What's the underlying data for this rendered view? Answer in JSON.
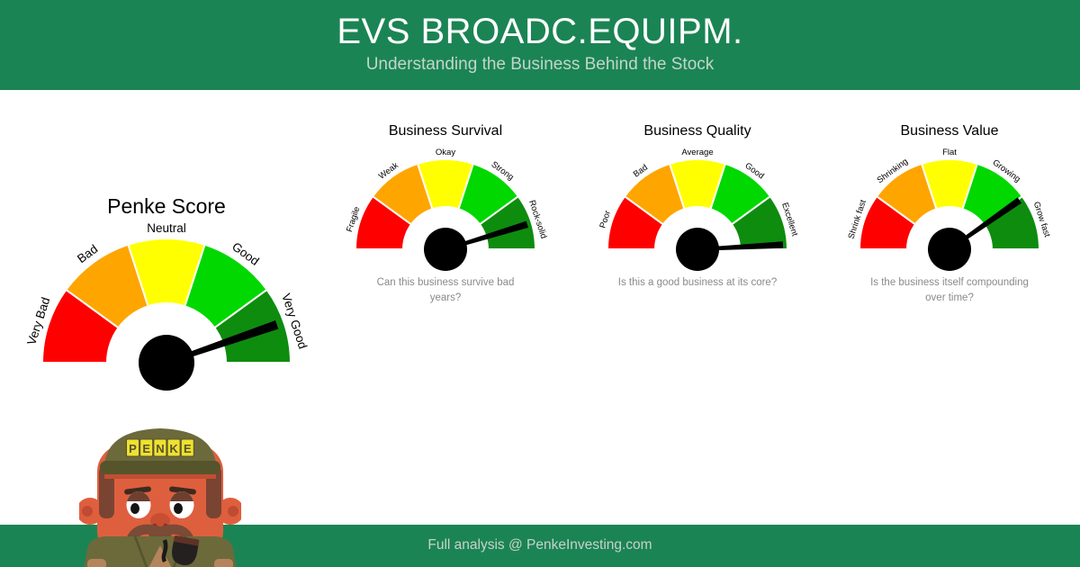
{
  "header": {
    "title": "EVS BROADC.EQUIPM.",
    "subtitle": "Understanding the Business Behind the Stock"
  },
  "footer": {
    "text": "Full analysis @ PenkeInvesting.com"
  },
  "colors": {
    "header_bg": "#1B8454",
    "footer_bg": "#1B8454",
    "segments": [
      "#FF0000",
      "#FFA500",
      "#FFFF00",
      "#00D800",
      "#0E8C0E"
    ],
    "needle": "#000000",
    "gauge_label_text": "#000000",
    "caption_text": "#8A8A8A",
    "header_text": "#FFFFFF",
    "subtitle_text": "#C2D6CA",
    "footer_text": "#C8D2CB"
  },
  "mascot": {
    "hat_text": "PENKE"
  },
  "chart_data": [
    {
      "type": "gauge",
      "title": "Penke Score",
      "categories": [
        "Very Bad",
        "Bad",
        "Neutral",
        "Good",
        "Very Good"
      ],
      "segment_colors": [
        "#FF0000",
        "#FFA500",
        "#FFFF00",
        "#00D800",
        "#0E8C0E"
      ],
      "needle_category": "Very Good",
      "needle_angle_deg_above_right_horizontal": 19,
      "caption": "",
      "size": "large"
    },
    {
      "type": "gauge",
      "title": "Business Survival",
      "categories": [
        "Fragile",
        "Weak",
        "Okay",
        "Strong",
        "Rock-solid"
      ],
      "segment_colors": [
        "#FF0000",
        "#FFA500",
        "#FFFF00",
        "#00D800",
        "#0E8C0E"
      ],
      "needle_category": "Rock-solid",
      "needle_angle_deg_above_right_horizontal": 17,
      "caption": "Can this business survive bad years?",
      "size": "small"
    },
    {
      "type": "gauge",
      "title": "Business Quality",
      "categories": [
        "Poor",
        "Bad",
        "Average",
        "Good",
        "Excellent"
      ],
      "segment_colors": [
        "#FF0000",
        "#FFA500",
        "#FFFF00",
        "#00D800",
        "#0E8C0E"
      ],
      "needle_category": "Excellent",
      "needle_angle_deg_above_right_horizontal": 3,
      "caption": "Is this a good business at its core?",
      "size": "small"
    },
    {
      "type": "gauge",
      "title": "Business Value",
      "categories": [
        "Shrink fast",
        "Shrinking",
        "Flat",
        "Growing",
        "Grow fast"
      ],
      "segment_colors": [
        "#FF0000",
        "#FFA500",
        "#FFFF00",
        "#00D800",
        "#0E8C0E"
      ],
      "needle_category": "Grow fast",
      "needle_angle_deg_above_right_horizontal": 35,
      "caption": "Is the business itself compounding over time?",
      "size": "small"
    }
  ]
}
